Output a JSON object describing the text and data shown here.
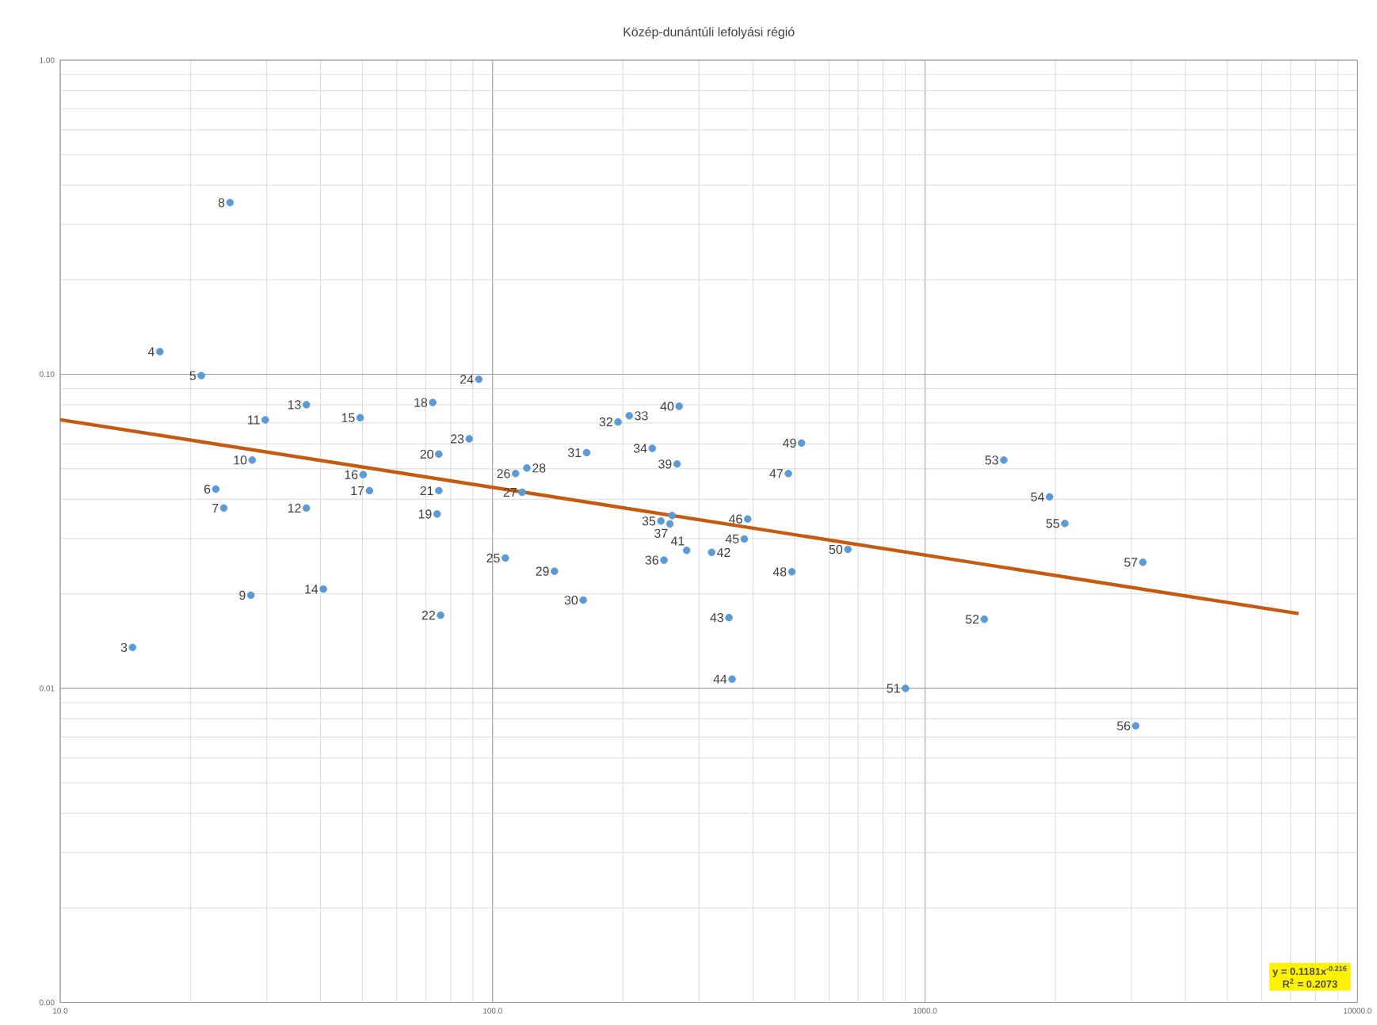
{
  "chart_data": {
    "type": "scatter",
    "title": "Közép-dunántúli lefolyási régió",
    "log": "xy",
    "grid": true,
    "marker": "circle",
    "xlim": [
      10,
      10000
    ],
    "ylim": [
      0.001,
      1
    ],
    "xticks": [
      {
        "value": 10,
        "label": "10.0"
      },
      {
        "value": 100,
        "label": "100.0"
      },
      {
        "value": 1000,
        "label": "1000.0"
      },
      {
        "value": 10000,
        "label": "10000.0"
      }
    ],
    "yticks": [
      {
        "value": 0.001,
        "label": "0.00"
      },
      {
        "value": 0.01,
        "label": "0.01"
      },
      {
        "value": 0.1,
        "label": "0.10"
      },
      {
        "value": 1,
        "label": "1.00"
      }
    ],
    "series": [
      {
        "color": "#5b9bd5",
        "x": [
          14.7,
          17.0,
          21.2,
          22.9,
          23.9,
          24.7,
          27.6,
          27.8,
          29.8,
          37.1,
          37.1,
          40.6,
          49.4,
          50.2,
          51.9,
          72.7,
          74.4,
          75.1,
          75.1,
          75.8,
          88.3,
          92.9,
          107,
          113,
          117,
          120,
          139,
          162,
          165,
          195,
          207,
          234,
          245,
          249,
          257,
          260,
          267,
          270,
          281,
          321,
          352,
          358,
          382,
          389,
          483,
          492,
          518,
          663,
          901,
          1371,
          1521,
          1941,
          2105,
          3070,
          3190
        ],
        "values": [
          0.0135,
          0.118,
          0.099,
          0.0431,
          0.0375,
          0.352,
          0.0198,
          0.0533,
          0.0716,
          0.0375,
          0.08,
          0.0207,
          0.0727,
          0.0479,
          0.0426,
          0.0813,
          0.0359,
          0.0557,
          0.0426,
          0.0171,
          0.0623,
          0.0964,
          0.026,
          0.0483,
          0.0421,
          0.0503,
          0.0236,
          0.0191,
          0.0563,
          0.0705,
          0.0738,
          0.0581,
          0.0341,
          0.0256,
          0.0334,
          0.0355,
          0.0518,
          0.0791,
          0.0275,
          0.0271,
          0.0168,
          0.0107,
          0.0299,
          0.0346,
          0.0483,
          0.0235,
          0.0604,
          0.0277,
          0.01,
          0.0166,
          0.0533,
          0.0407,
          0.0335,
          0.0076,
          0.0252
        ]
      },
      {
        "type": "line",
        "marker": "none",
        "color": "#c55a11",
        "x": [
          10,
          7310
        ],
        "values": [
          0.0717,
          0.0173
        ]
      }
    ],
    "annotations": [
      "y = 0.1181x$^{-0.216}$",
      "R$^{2}$ = 0.2073",
      {
        "text": "3",
        "x": 14.7,
        "y": 0.0135
      },
      {
        "text": "4",
        "x": 17.0,
        "y": 0.118
      },
      {
        "text": "5",
        "x": 21.2,
        "y": 0.099
      },
      {
        "text": "6",
        "x": 22.9,
        "y": 0.0431
      },
      {
        "text": "7",
        "x": 23.9,
        "y": 0.0375
      },
      {
        "text": "8",
        "x": 24.7,
        "y": 0.352
      },
      {
        "text": "9",
        "x": 27.6,
        "y": 0.0198
      },
      {
        "text": "10",
        "x": 27.8,
        "y": 0.0533
      },
      {
        "text": "11",
        "x": 29.8,
        "y": 0.0716
      },
      {
        "text": "12",
        "x": 37.1,
        "y": 0.0375
      },
      {
        "text": "13",
        "x": 37.1,
        "y": 0.08
      },
      {
        "text": "14",
        "x": 40.6,
        "y": 0.0207
      },
      {
        "text": "15",
        "x": 49.4,
        "y": 0.0727
      },
      {
        "text": "16",
        "x": 50.2,
        "y": 0.0479
      },
      {
        "text": "17",
        "x": 51.9,
        "y": 0.0426
      },
      {
        "text": "18",
        "x": 72.7,
        "y": 0.0813
      },
      {
        "text": "19",
        "x": 74.4,
        "y": 0.0359
      },
      {
        "text": "20",
        "x": 75.1,
        "y": 0.0557
      },
      {
        "text": "21",
        "x": 75.1,
        "y": 0.0426
      },
      {
        "text": "22",
        "x": 75.8,
        "y": 0.0171
      },
      {
        "text": "23",
        "x": 88.3,
        "y": 0.0623
      },
      {
        "text": "24",
        "x": 92.9,
        "y": 0.0964
      },
      {
        "text": "25",
        "x": 107,
        "y": 0.026
      },
      {
        "text": "26",
        "x": 113,
        "y": 0.0483
      },
      {
        "text": "27",
        "x": 117,
        "y": 0.0421
      },
      {
        "text": "28",
        "x": 120,
        "y": 0.0503
      },
      {
        "text": "29",
        "x": 139,
        "y": 0.0236
      },
      {
        "text": "30",
        "x": 162,
        "y": 0.0191
      },
      {
        "text": "31",
        "x": 165,
        "y": 0.0563
      },
      {
        "text": "32",
        "x": 195,
        "y": 0.0705
      },
      {
        "text": "33",
        "x": 207,
        "y": 0.0738
      },
      {
        "text": "34",
        "x": 234,
        "y": 0.0581
      },
      {
        "text": "35",
        "x": 245,
        "y": 0.0341
      },
      {
        "text": "36",
        "x": 249,
        "y": 0.0256
      },
      {
        "text": "37",
        "x": 257,
        "y": 0.0334
      },
      {
        "text": "39",
        "x": 267,
        "y": 0.0518
      },
      {
        "text": "40",
        "x": 270,
        "y": 0.0791
      },
      {
        "text": "41",
        "x": 281,
        "y": 0.0275
      },
      {
        "text": "42",
        "x": 321,
        "y": 0.0271
      },
      {
        "text": "43",
        "x": 352,
        "y": 0.0168
      },
      {
        "text": "44",
        "x": 358,
        "y": 0.0107
      },
      {
        "text": "45",
        "x": 382,
        "y": 0.0299
      },
      {
        "text": "46",
        "x": 389,
        "y": 0.0346
      },
      {
        "text": "47",
        "x": 483,
        "y": 0.0483
      },
      {
        "text": "48",
        "x": 492,
        "y": 0.0235
      },
      {
        "text": "49",
        "x": 518,
        "y": 0.0604
      },
      {
        "text": "50",
        "x": 663,
        "y": 0.0277
      },
      {
        "text": "51",
        "x": 901,
        "y": 0.01
      },
      {
        "text": "52",
        "x": 1371,
        "y": 0.0166
      },
      {
        "text": "53",
        "x": 1521,
        "y": 0.0533
      },
      {
        "text": "54",
        "x": 1941,
        "y": 0.0407
      },
      {
        "text": "55",
        "x": 2105,
        "y": 0.0335
      },
      {
        "text": "56",
        "x": 3070,
        "y": 0.0076
      },
      {
        "text": "57",
        "x": 3190,
        "y": 0.0252
      }
    ]
  }
}
